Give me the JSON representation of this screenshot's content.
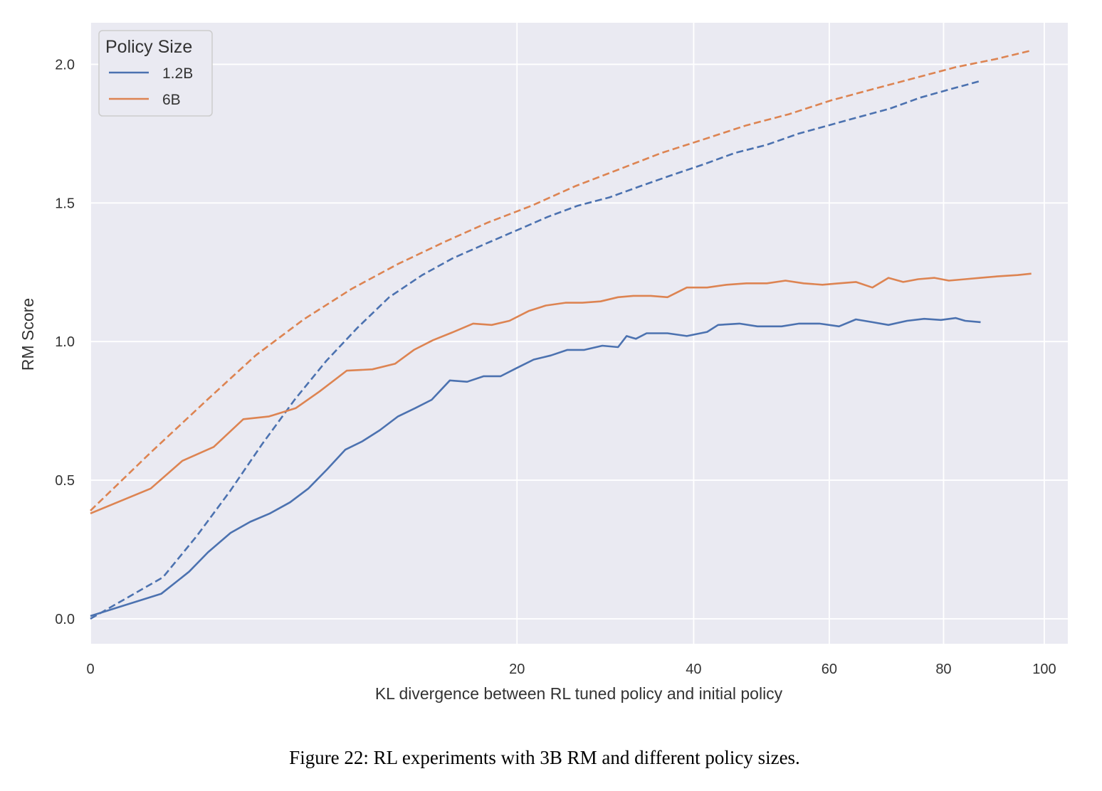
{
  "caption": "Figure 22: RL experiments with 3B RM and different policy sizes.",
  "chart_data": {
    "type": "line",
    "xlabel": "KL divergence between RL tuned policy and initial policy",
    "ylabel": "RM Score",
    "x_scale": "sqrt",
    "xlim": [
      0,
      105
    ],
    "ylim": [
      -0.09,
      2.15
    ],
    "xticks": [
      0,
      20,
      40,
      60,
      80,
      100
    ],
    "yticks": [
      0.0,
      0.5,
      1.0,
      1.5,
      2.0
    ],
    "xtick_labels": [
      "0",
      "20",
      "40",
      "60",
      "80",
      "100"
    ],
    "ytick_labels": [
      "0.0",
      "0.5",
      "1.0",
      "1.5",
      "2.0"
    ],
    "grid": true,
    "background": "#EAEAF2",
    "legend": {
      "title": "Policy Size",
      "position": "top-left",
      "entries": [
        {
          "label": "1.2B",
          "color": "#4C72B0"
        },
        {
          "label": "6B",
          "color": "#DD8452"
        }
      ]
    },
    "series": [
      {
        "legend_label": "1.2B",
        "style": "solid",
        "color": "#4C72B0",
        "x": [
          0,
          0.55,
          1.07,
          1.52,
          2.16,
          2.81,
          3.54,
          4.38,
          5.22,
          6.17,
          7.14,
          8.12,
          9.2,
          10.4,
          11.6,
          12.8,
          14.2,
          15.6,
          17.0,
          18.5,
          20.0,
          21.6,
          23.3,
          25.0,
          26.8,
          28.8,
          30.6,
          31.6,
          32.7,
          34.0,
          36.6,
          39.1,
          41.8,
          43.3,
          46.3,
          48.9,
          52.5,
          55.2,
          58.4,
          61.6,
          64.4,
          67.2,
          70.0,
          73.3,
          76.4,
          79.5,
          82.3,
          84.1,
          87.1
        ],
        "y": [
          0.01,
          0.09,
          0.17,
          0.24,
          0.31,
          0.35,
          0.38,
          0.42,
          0.47,
          0.54,
          0.61,
          0.64,
          0.68,
          0.73,
          0.76,
          0.79,
          0.86,
          0.855,
          0.875,
          0.875,
          0.905,
          0.935,
          0.95,
          0.97,
          0.97,
          0.985,
          0.98,
          1.02,
          1.01,
          1.03,
          1.03,
          1.02,
          1.035,
          1.06,
          1.065,
          1.055,
          1.055,
          1.065,
          1.065,
          1.055,
          1.08,
          1.07,
          1.06,
          1.075,
          1.082,
          1.078,
          1.085,
          1.075,
          1.07
        ]
      },
      {
        "legend_label": "1.2B",
        "style": "dashed",
        "color": "#4C72B0",
        "x": [
          0,
          0.58,
          1.25,
          2.14,
          3.24,
          4.58,
          6.11,
          7.84,
          9.81,
          12.1,
          14.4,
          17.0,
          19.9,
          23.0,
          26.1,
          29.6,
          33.2,
          37.1,
          41.4,
          45.6,
          50.3,
          55.1,
          59.9,
          64.9,
          70.2,
          75.7,
          81.2,
          87.1
        ],
        "y": [
          0.0,
          0.15,
          0.3,
          0.46,
          0.63,
          0.79,
          0.93,
          1.05,
          1.16,
          1.24,
          1.3,
          1.35,
          1.4,
          1.45,
          1.49,
          1.52,
          1.56,
          1.6,
          1.64,
          1.68,
          1.71,
          1.75,
          1.78,
          1.81,
          1.84,
          1.88,
          1.91,
          1.94
        ]
      },
      {
        "legend_label": "6B",
        "style": "solid",
        "color": "#DD8452",
        "x": [
          0,
          0.4,
          0.93,
          1.67,
          2.57,
          3.51,
          4.64,
          5.77,
          7.22,
          8.74,
          10.2,
          11.5,
          12.9,
          14.5,
          16.1,
          17.7,
          19.3,
          21.1,
          22.8,
          24.8,
          26.6,
          28.6,
          30.6,
          32.4,
          34.5,
          36.6,
          39.1,
          41.8,
          44.5,
          47.3,
          50.3,
          53.1,
          55.9,
          58.9,
          61.6,
          64.4,
          67.2,
          70.0,
          72.6,
          75.3,
          78.3,
          81.0,
          84.1,
          87.1,
          90.3,
          94.5,
          97.3
        ],
        "y": [
          0.38,
          0.47,
          0.57,
          0.62,
          0.72,
          0.73,
          0.76,
          0.82,
          0.895,
          0.9,
          0.92,
          0.97,
          1.005,
          1.035,
          1.065,
          1.06,
          1.075,
          1.11,
          1.13,
          1.14,
          1.14,
          1.145,
          1.16,
          1.165,
          1.165,
          1.16,
          1.195,
          1.195,
          1.205,
          1.21,
          1.21,
          1.22,
          1.21,
          1.205,
          1.21,
          1.215,
          1.195,
          1.23,
          1.215,
          1.225,
          1.23,
          1.22,
          1.225,
          1.23,
          1.235,
          1.24,
          1.245
        ]
      },
      {
        "legend_label": "6B",
        "style": "dashed",
        "color": "#DD8452",
        "x": [
          0,
          0.4,
          1.5,
          3.0,
          5.0,
          7.5,
          10.4,
          13.8,
          17.4,
          21.4,
          25.8,
          30.6,
          35.8,
          41.4,
          47.3,
          53.6,
          60.3,
          67.2,
          74.6,
          82.3,
          90.3,
          97.3
        ],
        "y": [
          0.39,
          0.6,
          0.79,
          0.95,
          1.08,
          1.19,
          1.28,
          1.36,
          1.43,
          1.49,
          1.56,
          1.62,
          1.68,
          1.73,
          1.78,
          1.82,
          1.87,
          1.91,
          1.95,
          1.99,
          2.02,
          2.05
        ]
      }
    ]
  }
}
